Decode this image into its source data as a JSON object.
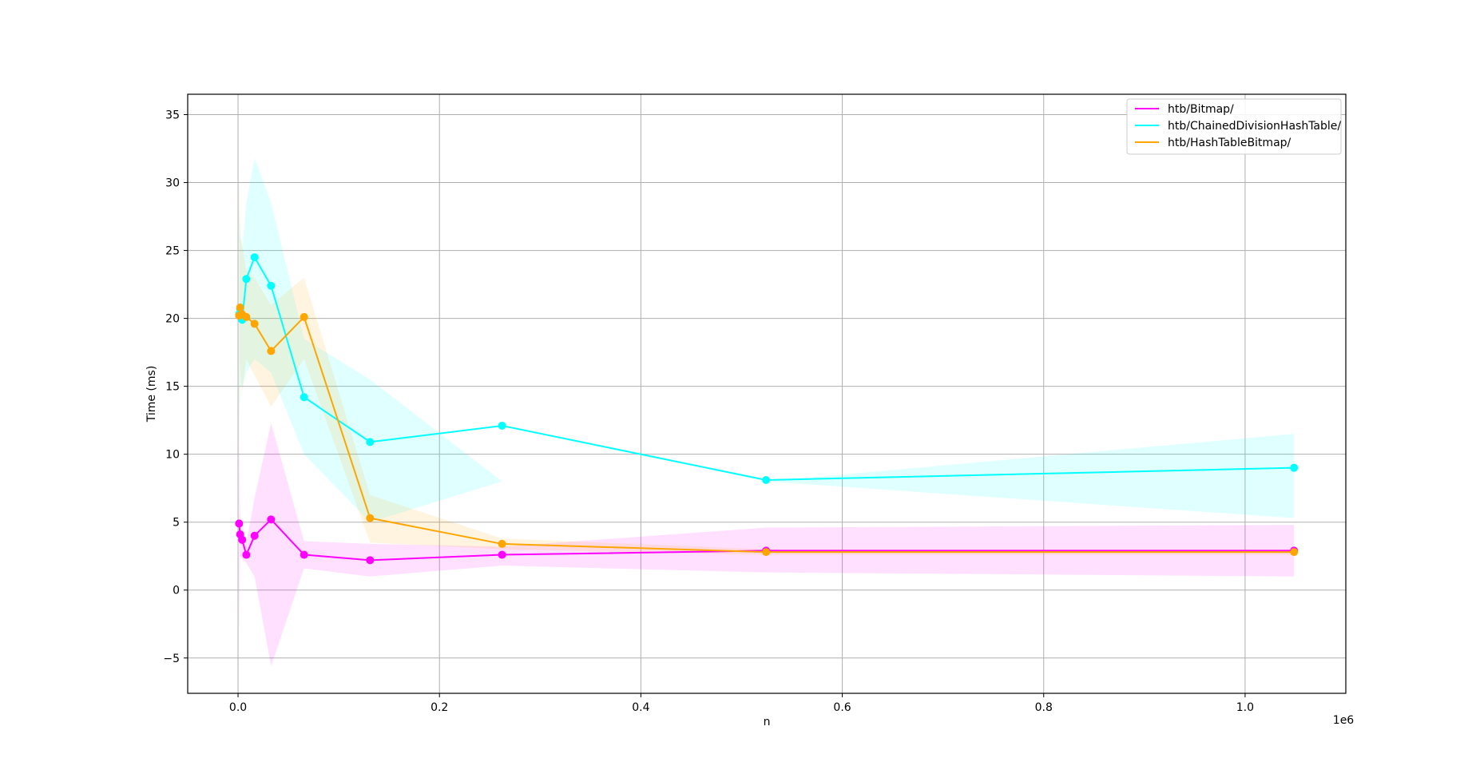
{
  "chart_data": {
    "type": "line",
    "xlabel": "n",
    "ylabel": "Time (ms)",
    "x_offset_label": "1e6",
    "xlim": [
      -50000,
      1100000
    ],
    "ylim": [
      -7.6,
      36.5
    ],
    "x_ticks": [
      0,
      200000,
      400000,
      600000,
      800000,
      1000000
    ],
    "x_tick_labels": [
      "0.0",
      "0.2",
      "0.4",
      "0.6",
      "0.8",
      "1.0"
    ],
    "y_ticks": [
      -5,
      0,
      5,
      10,
      15,
      20,
      25,
      30,
      35
    ],
    "y_tick_labels": [
      "−5",
      "0",
      "5",
      "10",
      "15",
      "20",
      "25",
      "30",
      "35"
    ],
    "grid": true,
    "legend_position": "top-right",
    "x": [
      1024,
      2048,
      4096,
      8192,
      16384,
      32768,
      65536,
      131072,
      262144,
      524288,
      1048576
    ],
    "series": [
      {
        "name": "htb/Bitmap/",
        "color": "#ff00ff",
        "values": [
          4.9,
          4.1,
          3.7,
          2.6,
          4.0,
          5.2,
          2.6,
          2.2,
          2.6,
          2.9,
          2.9
        ],
        "lower": [
          -3.5,
          2.5,
          2.3,
          2.0,
          1.0,
          -5.6,
          1.6,
          1.0,
          1.8,
          1.3,
          1.0
        ],
        "upper": [
          12.5,
          5.5,
          5.0,
          3.5,
          6.8,
          12.3,
          3.6,
          3.4,
          3.2,
          4.6,
          4.8
        ]
      },
      {
        "name": "htb/ChainedDivisionHashTable/",
        "color": "#00ffff",
        "values": [
          20.3,
          20.7,
          19.9,
          22.9,
          24.5,
          22.4,
          14.2,
          10.9,
          12.1,
          8.1,
          9.0
        ],
        "lower": [
          12.0,
          15.0,
          15.0,
          16.0,
          17.0,
          16.0,
          10.0,
          5.0,
          8.0,
          8.0,
          5.3
        ],
        "upper": [
          28.0,
          26.5,
          25.0,
          28.5,
          31.8,
          28.5,
          18.5,
          15.5,
          8.0,
          8.0,
          11.5
        ]
      },
      {
        "name": "htb/HashTableBitmap/",
        "color": "#ffa500",
        "values": [
          20.2,
          20.8,
          20.3,
          20.1,
          19.6,
          17.6,
          20.1,
          5.3,
          3.4,
          2.8,
          2.8
        ],
        "lower": [
          10.0,
          16.5,
          14.5,
          17.0,
          15.8,
          13.5,
          17.0,
          3.5,
          3.0,
          2.6,
          2.6
        ],
        "upper": [
          31.8,
          26.0,
          25.5,
          23.5,
          23.0,
          21.0,
          23.0,
          7.0,
          3.8,
          3.0,
          3.0
        ]
      }
    ]
  }
}
